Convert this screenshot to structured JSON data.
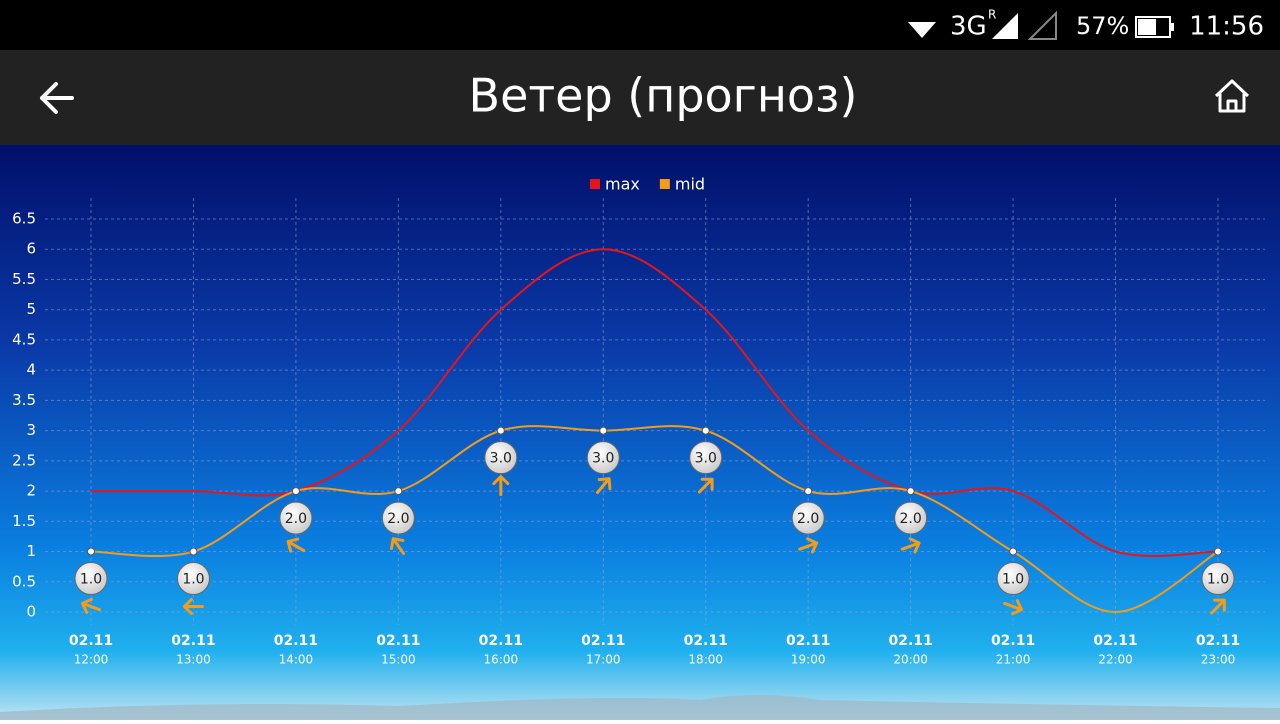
{
  "status_bar": {
    "network": "3G",
    "roaming": "R",
    "battery": "57%",
    "time": "11:56"
  },
  "header": {
    "title": "Ветер (прогноз)"
  },
  "chart_data": {
    "type": "line",
    "legend": "top",
    "grid": true,
    "categories": [
      [
        "02.11",
        "12:00"
      ],
      [
        "02.11",
        "13:00"
      ],
      [
        "02.11",
        "14:00"
      ],
      [
        "02.11",
        "15:00"
      ],
      [
        "02.11",
        "16:00"
      ],
      [
        "02.11",
        "17:00"
      ],
      [
        "02.11",
        "18:00"
      ],
      [
        "02.11",
        "19:00"
      ],
      [
        "02.11",
        "20:00"
      ],
      [
        "02.11",
        "21:00"
      ],
      [
        "02.11",
        "22:00"
      ],
      [
        "02.11",
        "23:00"
      ]
    ],
    "series": [
      {
        "name": "max",
        "color": "#e8141c",
        "values": [
          2,
          2,
          2,
          3,
          5,
          6,
          5,
          3,
          2,
          2,
          1,
          1
        ]
      },
      {
        "name": "mid",
        "color": "#f39c1a",
        "values": [
          1,
          1,
          2,
          2,
          3,
          3,
          3,
          2,
          2,
          1,
          0,
          1
        ],
        "value_labels": [
          "1.0",
          "1.0",
          "2.0",
          "2.0",
          "3.0",
          "3.0",
          "3.0",
          "2.0",
          "2.0",
          "1.0",
          null,
          "1.0"
        ],
        "wind_direction": [
          200,
          180,
          210,
          235,
          270,
          310,
          315,
          340,
          340,
          20,
          null,
          315
        ]
      }
    ],
    "ylim": [
      0,
      6.5
    ],
    "yticks": [
      0,
      0.5,
      1,
      1.5,
      2,
      2.5,
      3,
      3.5,
      4,
      4.5,
      5,
      5.5,
      6,
      6.5
    ]
  }
}
